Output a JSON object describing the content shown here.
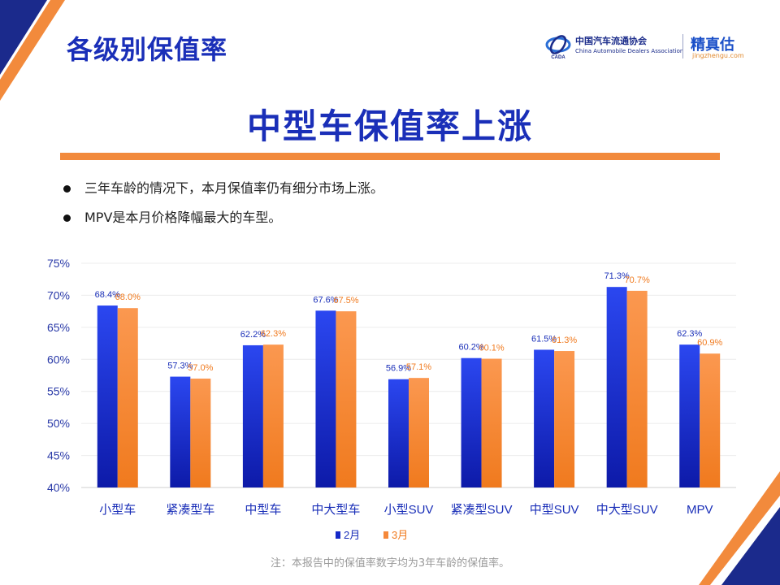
{
  "header": {
    "page_title": "各级别保值率",
    "logo": {
      "org_cn": "中国汽车流通协会",
      "org_en": "China Automobile Dealers Association",
      "brand_cn": "精真估",
      "brand_url": "jingzhengu.com",
      "mark_text": "CADA"
    }
  },
  "headline": "中型车保值率上涨",
  "bullets": [
    "三年车龄的情况下，本月保值率仍有细分市场上涨。",
    "MPV是本月价格降幅最大的车型。"
  ],
  "chart_data": {
    "type": "bar",
    "categories": [
      "小型车",
      "紧凑型车",
      "中型车",
      "中大型车",
      "小型SUV",
      "紧凑型SUV",
      "中型SUV",
      "中大型SUV",
      "MPV"
    ],
    "series": [
      {
        "name": "2月",
        "values": [
          68.4,
          57.3,
          62.2,
          67.6,
          56.9,
          60.2,
          61.5,
          71.3,
          62.3
        ],
        "color": "#1428c8"
      },
      {
        "name": "3月",
        "values": [
          68.0,
          57.0,
          62.3,
          67.5,
          57.1,
          60.1,
          61.3,
          70.7,
          60.9
        ],
        "color": "#f5883a"
      }
    ],
    "data_labels": [
      [
        "68.4%",
        "57.3%",
        "62.2%",
        "67.6%",
        "56.9%",
        "60.2%",
        "61.5%",
        "71.3%",
        "62.3%"
      ],
      [
        "68.0%",
        "57.0%",
        "62.3%",
        "67.5%",
        "57.1%",
        "60.1%",
        "61.3%",
        "70.7%",
        "60.9%"
      ]
    ],
    "ylim": [
      40,
      75
    ],
    "yticks": [
      40,
      45,
      50,
      55,
      60,
      65,
      70,
      75
    ],
    "ytick_labels": [
      "40%",
      "45%",
      "50%",
      "55%",
      "60%",
      "65%",
      "70%",
      "75%"
    ],
    "grid": true,
    "legend_position": "bottom-center"
  },
  "footnote": "注：本报告中的保值率数字均为3年车龄的保值率。",
  "colors": {
    "title_blue": "#1a2fb8",
    "accent_orange": "#f28a3c",
    "corner_navy": "#1b2a8c"
  }
}
